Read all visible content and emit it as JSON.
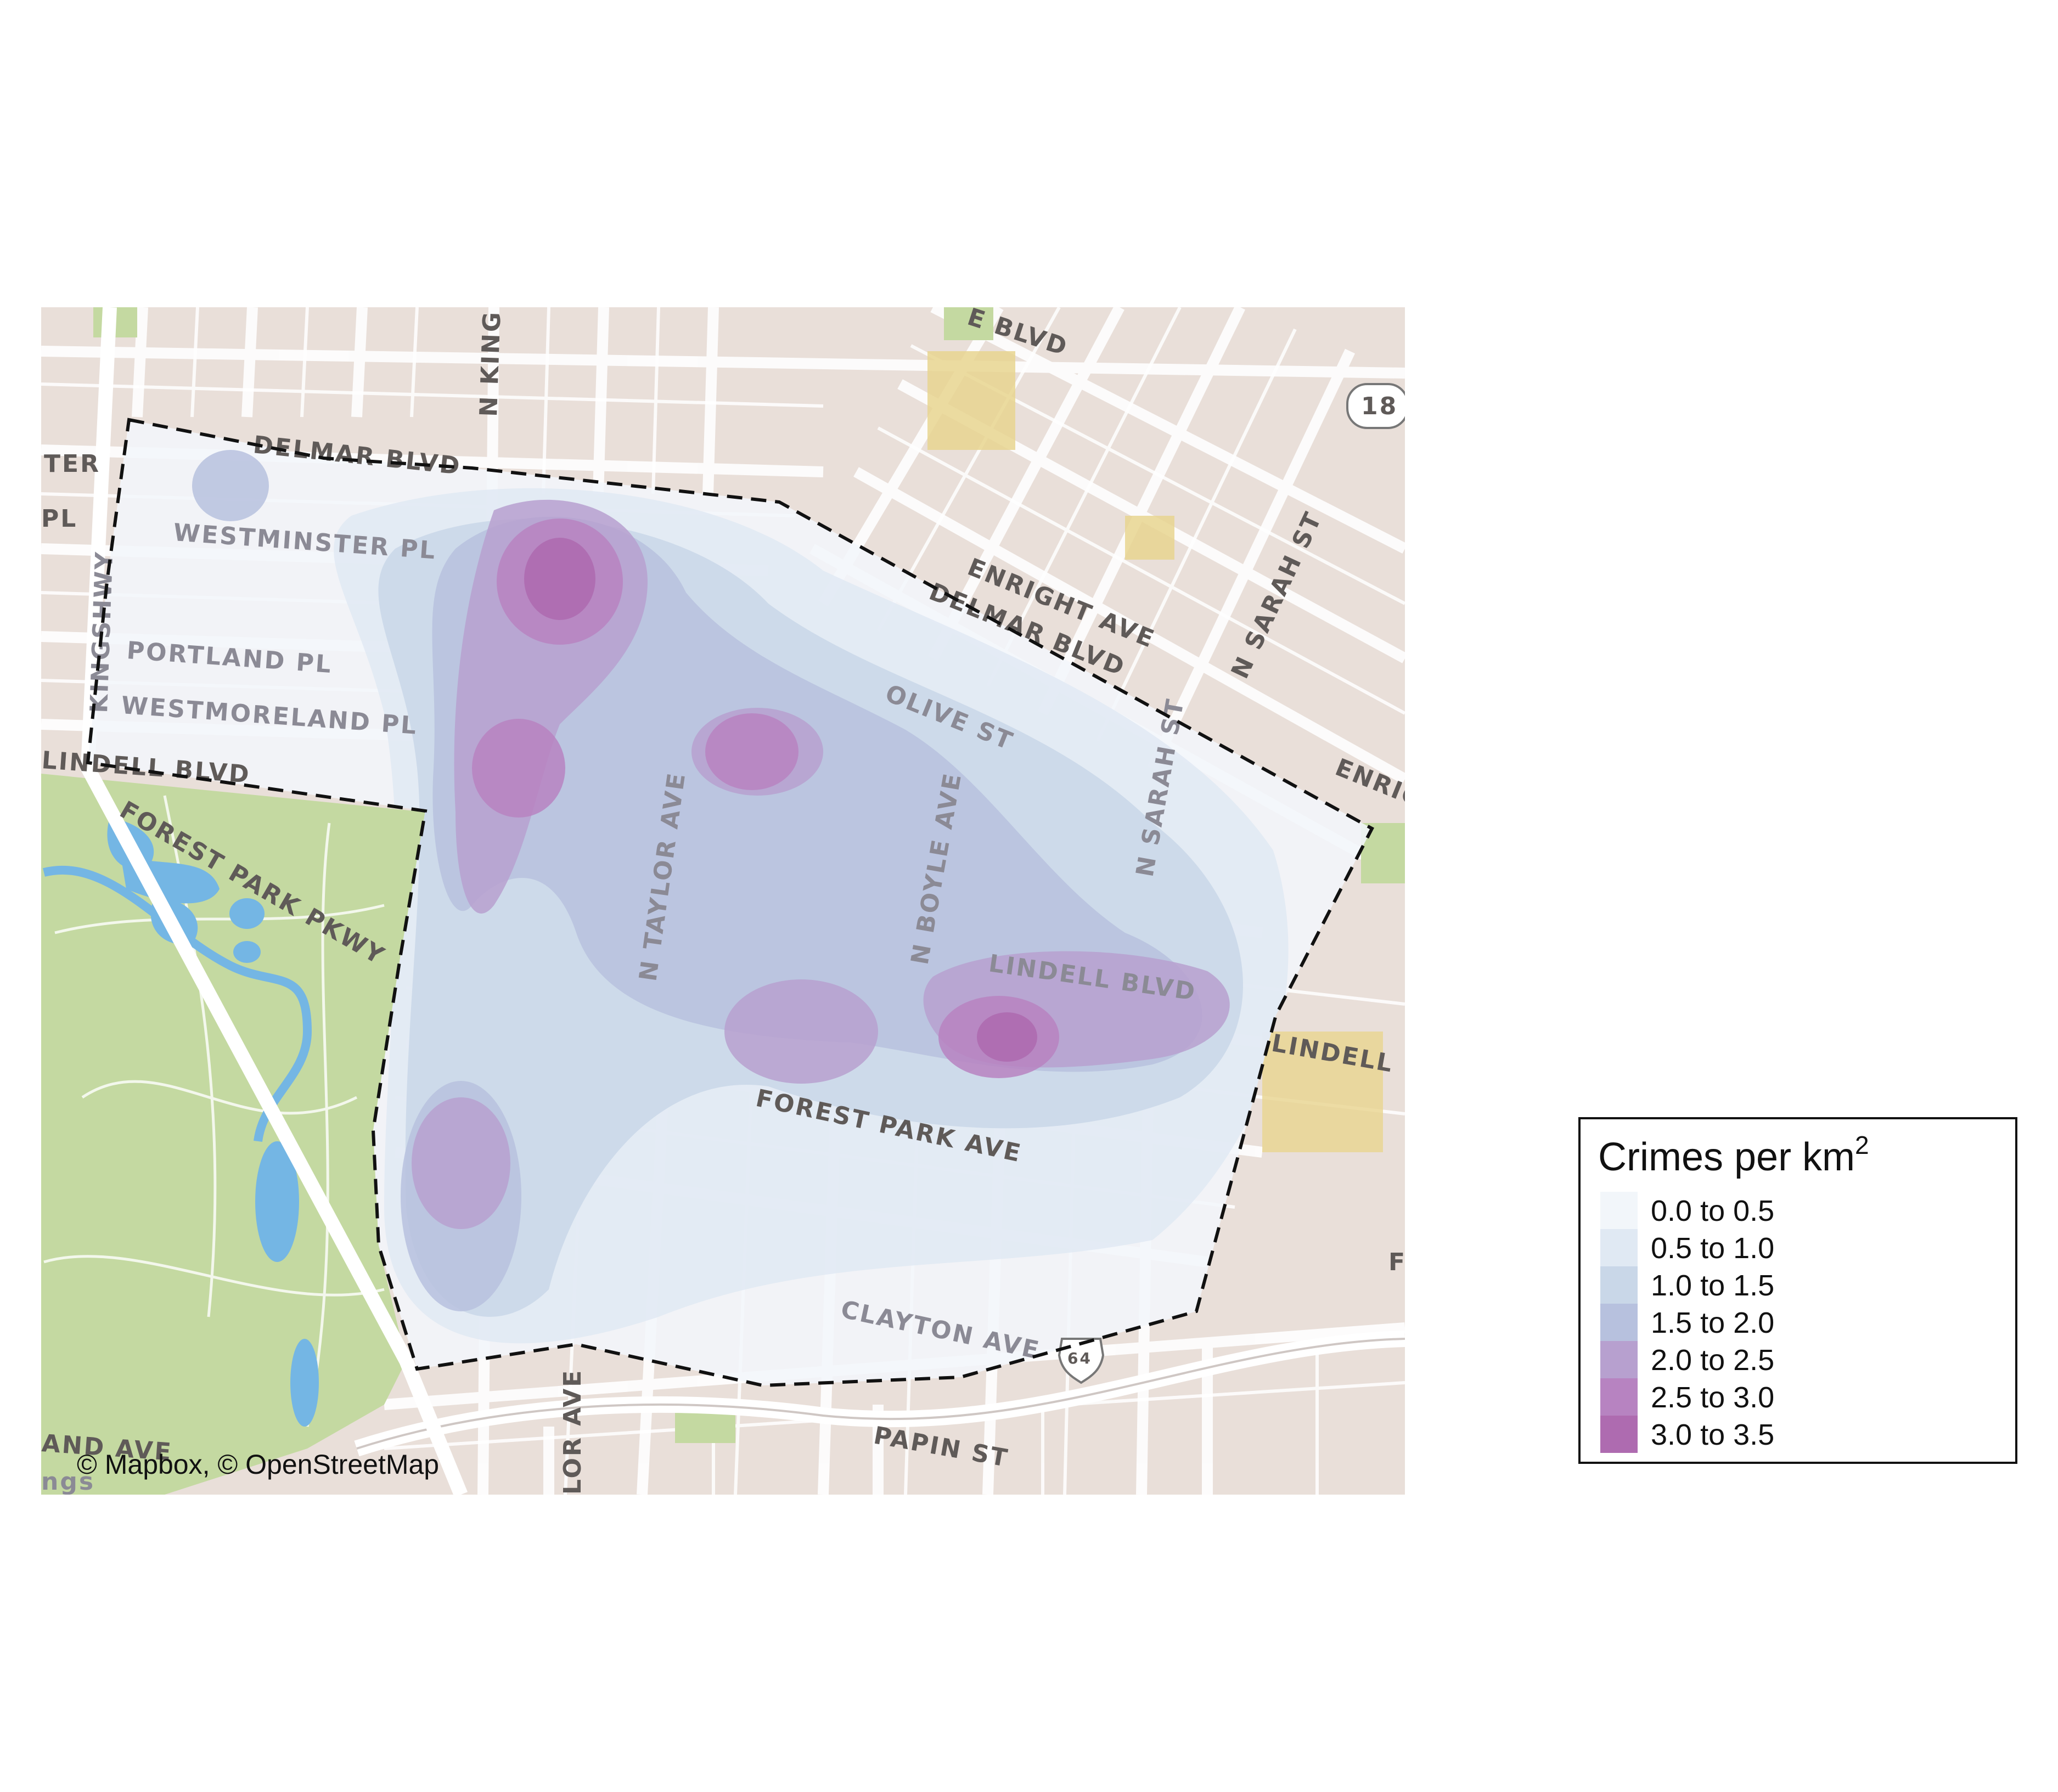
{
  "map": {
    "street_labels": [
      {
        "id": "delmar-blvd-w",
        "text": "DELMAR BLVD"
      },
      {
        "id": "ter",
        "text": "TER"
      },
      {
        "id": "pl",
        "text": "PL"
      },
      {
        "id": "westminster-pl",
        "text": "WESTMINSTER PL"
      },
      {
        "id": "portland-pl",
        "text": "PORTLAND PL"
      },
      {
        "id": "westmoreland-pl",
        "text": "WESTMORELAND PL"
      },
      {
        "id": "lindell-blvd-w",
        "text": "LINDELL BLVD"
      },
      {
        "id": "forest-park-pkwy",
        "text": "FOREST PARK PKWY"
      },
      {
        "id": "n-kingshighway",
        "text": "N KING"
      },
      {
        "id": "kingshighway-vert",
        "text": "KINGSHWY"
      },
      {
        "id": "blvd-top",
        "text": "E BLVD"
      },
      {
        "id": "route-18",
        "text": "18"
      },
      {
        "id": "enright-ave",
        "text": "ENRIGHT AVE"
      },
      {
        "id": "delmar-blvd-e",
        "text": "DELMAR BLVD"
      },
      {
        "id": "n-sarah-st-top",
        "text": "N SARAH ST"
      },
      {
        "id": "olive-st",
        "text": "OLIVE ST"
      },
      {
        "id": "enright-e",
        "text": "ENRIG"
      },
      {
        "id": "n-taylor-ave",
        "text": "N TAYLOR AVE"
      },
      {
        "id": "n-boyle-ave",
        "text": "N BOYLE AVE"
      },
      {
        "id": "n-sarah-st",
        "text": "N SARAH ST"
      },
      {
        "id": "lindell-blvd-mid",
        "text": "LINDELL BLVD"
      },
      {
        "id": "lindell-e",
        "text": "LINDELL"
      },
      {
        "id": "forest-park-ave",
        "text": "FOREST PARK AVE"
      },
      {
        "id": "clayton-ave",
        "text": "CLAYTON AVE"
      },
      {
        "id": "i-64",
        "text": "64"
      },
      {
        "id": "papin-st",
        "text": "PAPIN ST"
      },
      {
        "id": "and-ave",
        "text": "AND AVE"
      },
      {
        "id": "lor-ave",
        "text": "LOR AVE"
      },
      {
        "id": "ngs",
        "text": "ngs"
      },
      {
        "id": "f-edge",
        "text": "F"
      }
    ],
    "attribution": "© Mapbox, © OpenStreetMap"
  },
  "legend": {
    "title": "Crimes per km",
    "title_sup": "2",
    "items": [
      {
        "label": "0.0 to 0.5",
        "color": "#f2f6fa"
      },
      {
        "label": "0.5 to 1.0",
        "color": "#e0e9f3"
      },
      {
        "label": "1.0 to 1.5",
        "color": "#c9d7e8"
      },
      {
        "label": "1.5 to 2.0",
        "color": "#b7c1de"
      },
      {
        "label": "2.0 to 2.5",
        "color": "#b7a0cf"
      },
      {
        "label": "2.5 to 3.0",
        "color": "#b783c1"
      },
      {
        "label": "3.0 to 3.5",
        "color": "#ae6bb0"
      }
    ]
  },
  "colors": {
    "land": "#e9dfd9",
    "block": "#e5d6cf",
    "park": "#c4d9a1",
    "water": "#74b6e4",
    "road": "#ffffff",
    "boundary": "#111111"
  }
}
